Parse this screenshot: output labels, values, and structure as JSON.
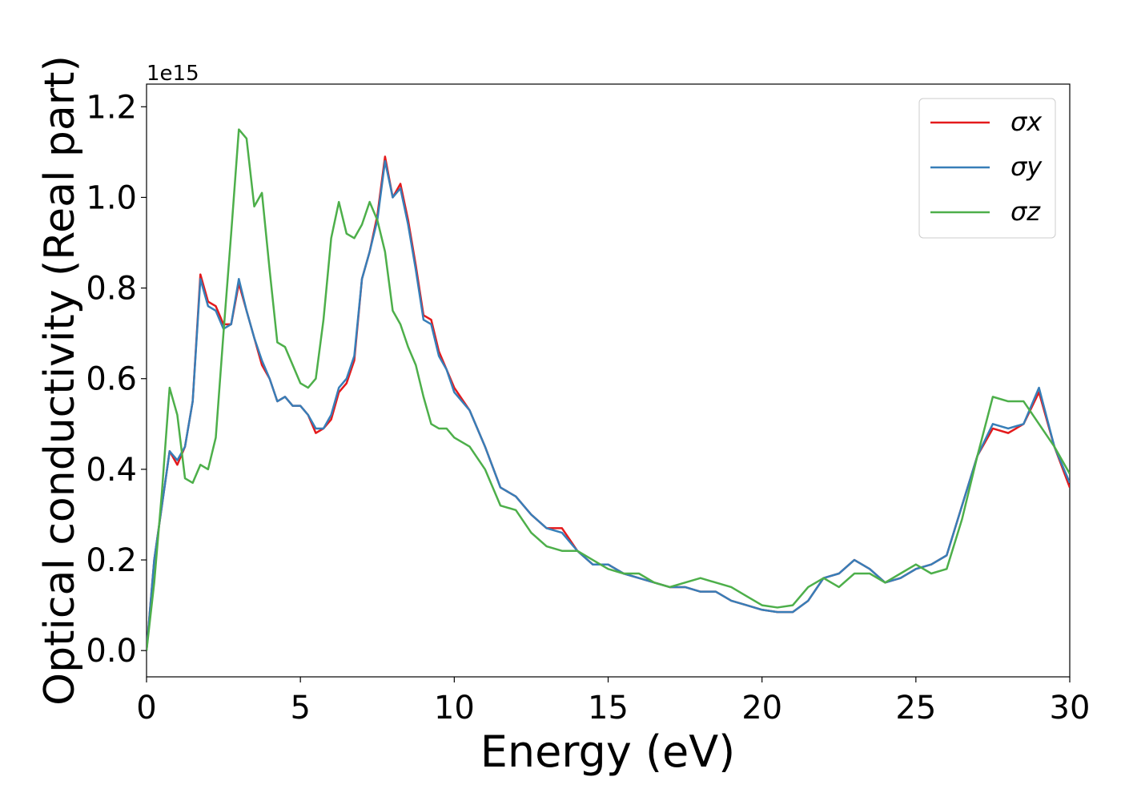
{
  "chart_data": {
    "type": "line",
    "y_label": "Optical conductivity (Real part)",
    "x_label": "Energy (eV)",
    "y_offset_label": "1e15",
    "xlim": [
      0,
      30
    ],
    "xticks": [
      0,
      5,
      10,
      15,
      20,
      25,
      30
    ],
    "ylim": [
      -0.058,
      1.25
    ],
    "yticks": [
      {
        "value": 0,
        "label": "0.0"
      },
      0.2,
      0.4,
      0.6,
      0.8,
      {
        "value": 1,
        "label": "1.0"
      },
      1.2
    ],
    "legend": "upper right",
    "x": [
      0,
      0.25,
      0.5,
      0.75,
      1,
      1.25,
      1.5,
      1.75,
      2,
      2.25,
      2.5,
      2.75,
      3,
      3.25,
      3.5,
      3.75,
      4,
      4.25,
      4.5,
      4.75,
      5,
      5.25,
      5.5,
      5.75,
      6,
      6.25,
      6.5,
      6.75,
      7,
      7.25,
      7.5,
      7.75,
      8,
      8.25,
      8.5,
      8.75,
      9,
      9.25,
      9.5,
      9.75,
      10,
      10.5,
      11,
      11.5,
      12,
      12.5,
      13,
      13.5,
      14,
      14.5,
      15,
      15.5,
      16,
      16.5,
      17,
      17.5,
      18,
      18.5,
      19,
      19.5,
      20,
      20.5,
      21,
      21.5,
      22,
      22.5,
      23,
      23.5,
      24,
      24.5,
      25,
      25.5,
      26,
      26.5,
      27,
      27.5,
      28,
      28.5,
      29,
      29.5,
      30
    ],
    "series": [
      {
        "name": "σx",
        "color": "#e41a1c",
        "values": [
          0,
          0.2,
          0.32,
          0.44,
          0.41,
          0.45,
          0.55,
          0.83,
          0.77,
          0.76,
          0.72,
          0.72,
          0.81,
          0.75,
          0.69,
          0.63,
          0.6,
          0.55,
          0.56,
          0.54,
          0.54,
          0.52,
          0.48,
          0.49,
          0.51,
          0.57,
          0.59,
          0.64,
          0.82,
          0.88,
          0.96,
          1.09,
          1.0,
          1.03,
          0.95,
          0.85,
          0.74,
          0.73,
          0.66,
          0.62,
          0.58,
          0.53,
          0.45,
          0.36,
          0.34,
          0.3,
          0.27,
          0.27,
          0.22,
          0.19,
          0.19,
          0.17,
          0.16,
          0.15,
          0.14,
          0.14,
          0.13,
          0.13,
          0.11,
          0.1,
          0.09,
          0.085,
          0.085,
          0.11,
          0.16,
          0.17,
          0.2,
          0.18,
          0.15,
          0.16,
          0.18,
          0.19,
          0.21,
          0.32,
          0.43,
          0.49,
          0.48,
          0.5,
          0.57,
          0.45,
          0.36
        ]
      },
      {
        "name": "σy",
        "color": "#377eb8",
        "values": [
          0,
          0.2,
          0.32,
          0.44,
          0.42,
          0.45,
          0.55,
          0.82,
          0.76,
          0.75,
          0.71,
          0.72,
          0.82,
          0.75,
          0.69,
          0.64,
          0.6,
          0.55,
          0.56,
          0.54,
          0.54,
          0.52,
          0.49,
          0.49,
          0.52,
          0.58,
          0.6,
          0.65,
          0.82,
          0.88,
          0.95,
          1.08,
          1.0,
          1.02,
          0.94,
          0.84,
          0.73,
          0.72,
          0.65,
          0.62,
          0.57,
          0.53,
          0.45,
          0.36,
          0.34,
          0.3,
          0.27,
          0.26,
          0.22,
          0.19,
          0.19,
          0.17,
          0.16,
          0.15,
          0.14,
          0.14,
          0.13,
          0.13,
          0.11,
          0.1,
          0.09,
          0.085,
          0.085,
          0.11,
          0.16,
          0.17,
          0.2,
          0.18,
          0.15,
          0.16,
          0.18,
          0.19,
          0.21,
          0.32,
          0.43,
          0.5,
          0.49,
          0.5,
          0.58,
          0.45,
          0.37
        ]
      },
      {
        "name": "σz",
        "color": "#4daf4a",
        "values": [
          0,
          0.15,
          0.35,
          0.58,
          0.52,
          0.38,
          0.37,
          0.41,
          0.4,
          0.47,
          0.7,
          0.92,
          1.15,
          1.13,
          0.98,
          1.01,
          0.84,
          0.68,
          0.67,
          0.63,
          0.59,
          0.58,
          0.6,
          0.73,
          0.91,
          0.99,
          0.92,
          0.91,
          0.94,
          0.99,
          0.95,
          0.88,
          0.75,
          0.72,
          0.67,
          0.63,
          0.56,
          0.5,
          0.49,
          0.49,
          0.47,
          0.45,
          0.4,
          0.32,
          0.31,
          0.26,
          0.23,
          0.22,
          0.22,
          0.2,
          0.18,
          0.17,
          0.17,
          0.15,
          0.14,
          0.15,
          0.16,
          0.15,
          0.14,
          0.12,
          0.1,
          0.095,
          0.1,
          0.14,
          0.16,
          0.14,
          0.17,
          0.17,
          0.15,
          0.17,
          0.19,
          0.17,
          0.18,
          0.29,
          0.43,
          0.56,
          0.55,
          0.55,
          0.5,
          0.45,
          0.39
        ]
      }
    ]
  }
}
